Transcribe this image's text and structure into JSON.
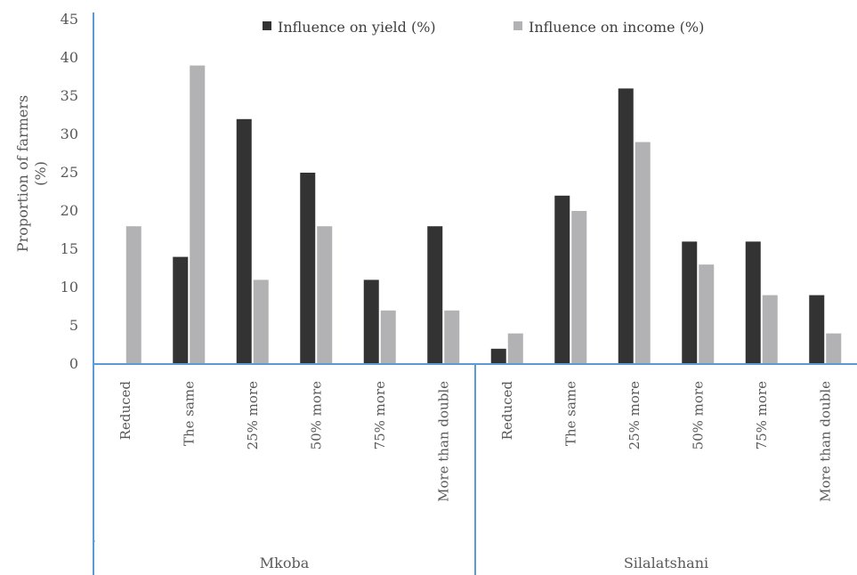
{
  "chart_data": {
    "type": "bar",
    "ylabel": "Proportion of farmers (%)",
    "ylabel_lines": [
      "Proportion of farmers",
      "(%)"
    ],
    "ylim": [
      0,
      45
    ],
    "yticks": [
      0,
      5,
      10,
      15,
      20,
      25,
      30,
      35,
      40,
      45
    ],
    "legend_position": "top",
    "groups": [
      {
        "name": "Mkoba",
        "categories": [
          "Reduced",
          "The same",
          "25% more",
          "50% more",
          "75% more",
          "More than double"
        ]
      },
      {
        "name": "Silalatshani",
        "categories": [
          "Reduced",
          "The same",
          "25% more",
          "50% more",
          "75% more",
          "More than double"
        ]
      }
    ],
    "series": [
      {
        "name": "Influence on yield (%)",
        "color": "#333333",
        "values": [
          0,
          14,
          32,
          25,
          11,
          18,
          2,
          22,
          36,
          16,
          16,
          9
        ]
      },
      {
        "name": "Influence on income (%)",
        "color": "#b2b2b4",
        "values": [
          18,
          39,
          11,
          18,
          7,
          7,
          4,
          20,
          29,
          13,
          9,
          4
        ]
      }
    ],
    "axis_color": "#5b9bd5"
  }
}
